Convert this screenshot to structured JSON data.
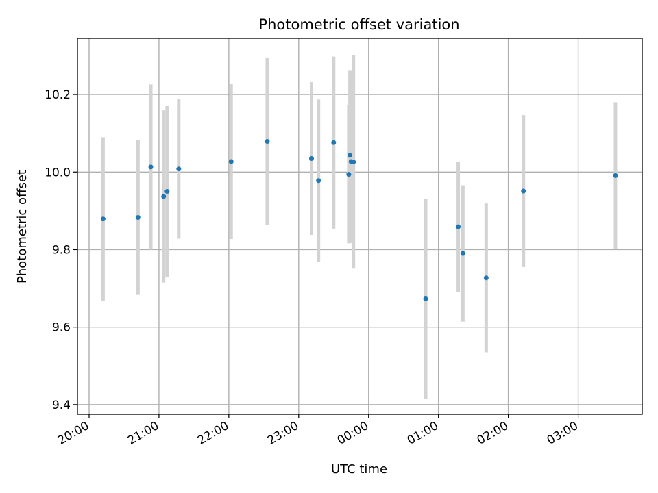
{
  "chart_data": {
    "type": "scatter",
    "title": "Photometric offset variation",
    "xlabel": "UTC time",
    "ylabel": "Photometric offset",
    "xlim": [
      "2000-01-01T19:50",
      "2000-01-02T03:55"
    ],
    "ylim": [
      9.375,
      10.345
    ],
    "x_ticks": [
      "20:00",
      "21:00",
      "22:00",
      "23:00",
      "00:00",
      "01:00",
      "02:00",
      "03:00"
    ],
    "x_tick_values": [
      "2000-01-01T20:00",
      "2000-01-01T21:00",
      "2000-01-01T22:00",
      "2000-01-01T23:00",
      "2000-01-02T00:00",
      "2000-01-02T01:00",
      "2000-01-02T02:00",
      "2000-01-02T03:00"
    ],
    "y_ticks": [
      9.4,
      9.6,
      9.8,
      10.0,
      10.2
    ],
    "y_tick_labels": [
      "9.4",
      "9.6",
      "9.8",
      "10.0",
      "10.2"
    ],
    "grid": true,
    "marker_color": "#1f77b4",
    "errorbar_color": "#d3d3d3",
    "series": [
      {
        "points": [
          {
            "x": "2000-01-01T20:12",
            "y": 9.879,
            "err": 0.211
          },
          {
            "x": "2000-01-01T20:42",
            "y": 9.883,
            "err": 0.2
          },
          {
            "x": "2000-01-01T20:53",
            "y": 10.013,
            "err": 0.213
          },
          {
            "x": "2000-01-01T21:04",
            "y": 9.937,
            "err": 0.222
          },
          {
            "x": "2000-01-01T21:07",
            "y": 9.95,
            "err": 0.22
          },
          {
            "x": "2000-01-01T21:17",
            "y": 10.008,
            "err": 0.18
          },
          {
            "x": "2000-01-01T22:02",
            "y": 10.027,
            "err": 0.2
          },
          {
            "x": "2000-01-01T22:33",
            "y": 10.079,
            "err": 0.216
          },
          {
            "x": "2000-01-01T23:11",
            "y": 10.035,
            "err": 0.197
          },
          {
            "x": "2000-01-01T23:17",
            "y": 9.978,
            "err": 0.209
          },
          {
            "x": "2000-01-01T23:30",
            "y": 10.076,
            "err": 0.222
          },
          {
            "x": "2000-01-01T23:43",
            "y": 9.994,
            "err": 0.178
          },
          {
            "x": "2000-01-01T23:44",
            "y": 10.043,
            "err": 0.22
          },
          {
            "x": "2000-01-01T23:45",
            "y": 10.027,
            "err": 0.21
          },
          {
            "x": "2000-01-01T23:47",
            "y": 10.026,
            "err": 0.275
          },
          {
            "x": "2000-01-02T00:49",
            "y": 9.673,
            "err": 0.258
          },
          {
            "x": "2000-01-02T01:17",
            "y": 9.859,
            "err": 0.168
          },
          {
            "x": "2000-01-02T01:21",
            "y": 9.79,
            "err": 0.176
          },
          {
            "x": "2000-01-02T01:41",
            "y": 9.727,
            "err": 0.192
          },
          {
            "x": "2000-01-02T02:13",
            "y": 9.951,
            "err": 0.196
          },
          {
            "x": "2000-01-02T03:32",
            "y": 9.991,
            "err": 0.189
          }
        ]
      }
    ]
  }
}
